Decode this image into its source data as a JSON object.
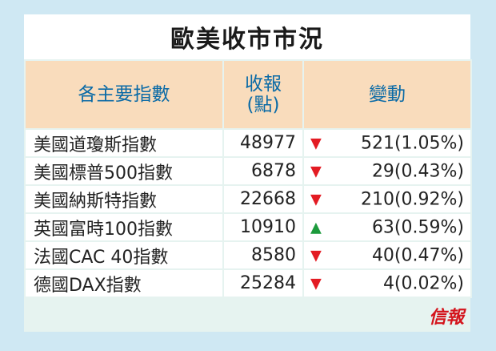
{
  "title": "歐美收市市況",
  "headers": {
    "index": "各主要指數",
    "close_line1": "收報",
    "close_line2": "(點)",
    "change": "變動"
  },
  "rows": [
    {
      "name": "美國道瓊斯指數",
      "close": "48977",
      "direction": "down",
      "change": "521(1.05%)"
    },
    {
      "name": "美國標普500指數",
      "close": "6878",
      "direction": "down",
      "change": "29(0.43%)"
    },
    {
      "name": "美國納斯特指數",
      "close": "22668",
      "direction": "down",
      "change": "210(0.92%)"
    },
    {
      "name": "英國富時100指數",
      "close": "10910",
      "direction": "up",
      "change": "63(0.59%)"
    },
    {
      "name": "法國CAC 40指數",
      "close": "8580",
      "direction": "down",
      "change": "40(0.47%)"
    },
    {
      "name": "德國DAX指數",
      "close": "25284",
      "direction": "down",
      "change": "4(0.02%)"
    }
  ],
  "colors": {
    "down": "#e31b23",
    "up": "#1c9a3c"
  },
  "logo": "信報"
}
